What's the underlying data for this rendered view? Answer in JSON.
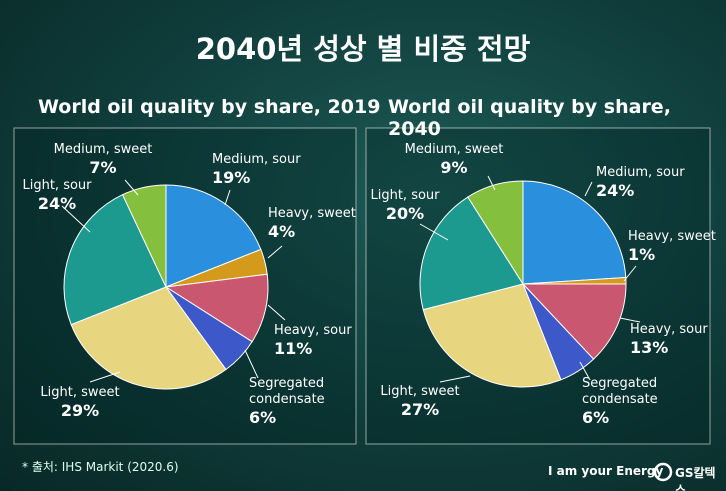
{
  "title": "2040년 성상 별 비중 전망",
  "source": "* 출처:  IHS Markit (2020.6)",
  "brand": "I am your Energy",
  "logo": "GS칼텍스",
  "chart_data": [
    {
      "type": "pie",
      "title": "World oil quality by share, 2019",
      "categories": [
        "Medium, sour",
        "Heavy, sweet",
        "Heavy, sour",
        "Segregated condensate",
        "Light, sweet",
        "Light, sour",
        "Medium, sweet"
      ],
      "values": [
        19,
        4,
        11,
        6,
        29,
        24,
        7
      ],
      "value_labels": [
        "19%",
        "4%",
        "11%",
        "6%",
        "29%",
        "24%",
        "7%"
      ],
      "colors": [
        "#2a8fdc",
        "#d39a1c",
        "#c9576f",
        "#3d58c9",
        "#e7d57f",
        "#1c9a90",
        "#84bf3e"
      ]
    },
    {
      "type": "pie",
      "title": "World oil quality by share, 2040",
      "categories": [
        "Medium, sour",
        "Heavy, sweet",
        "Heavy, sour",
        "Segregated condensate",
        "Light, sweet",
        "Light, sour",
        "Medium, sweet"
      ],
      "values": [
        24,
        1,
        13,
        6,
        27,
        20,
        9
      ],
      "value_labels": [
        "24%",
        "1%",
        "13%",
        "6%",
        "27%",
        "20%",
        "9%"
      ],
      "colors": [
        "#2a8fdc",
        "#d39a1c",
        "#c9576f",
        "#3d58c9",
        "#e7d57f",
        "#1c9a90",
        "#84bf3e"
      ]
    }
  ]
}
